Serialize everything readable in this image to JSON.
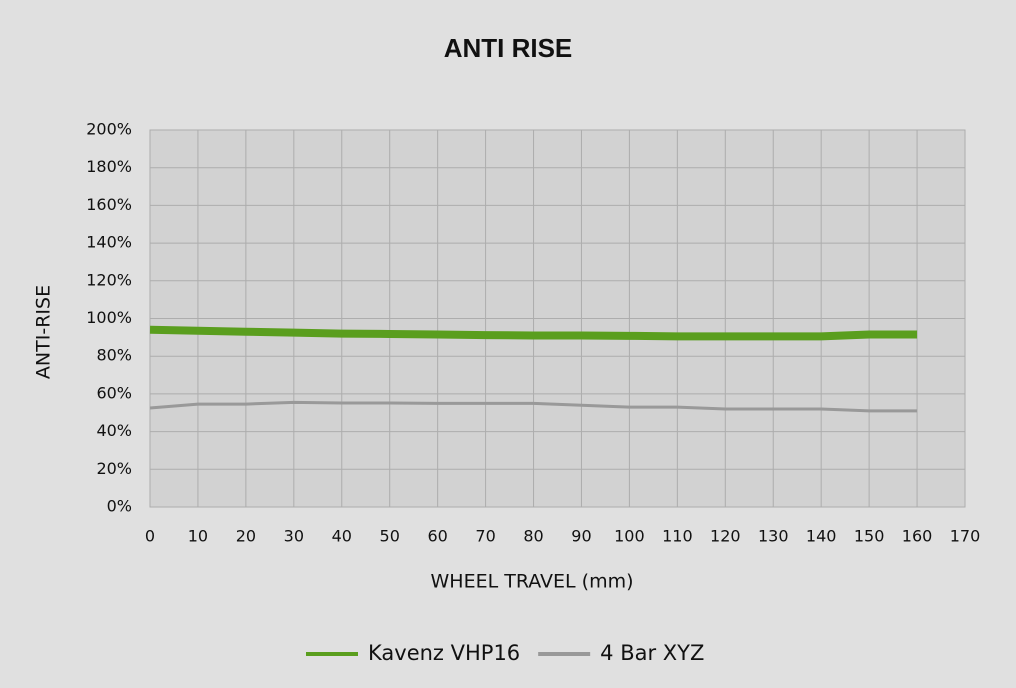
{
  "chart_data": {
    "type": "line",
    "title": "ANTI RISE",
    "x_label": "WHEEL TRAVEL (mm)",
    "y_label": "ANTI-RISE",
    "x": [
      0,
      10,
      20,
      30,
      40,
      50,
      60,
      70,
      80,
      90,
      100,
      110,
      120,
      130,
      140,
      150,
      160
    ],
    "series": [
      {
        "name": "Kavenz VHP16",
        "color": "#5a9e1e",
        "width": 8,
        "values": [
          94,
          93.5,
          93,
          92.5,
          92,
          91.8,
          91.5,
          91.2,
          91,
          91,
          90.8,
          90.5,
          90.5,
          90.5,
          90.5,
          91.5,
          91.5
        ]
      },
      {
        "name": "4 Bar XYZ",
        "color": "#999999",
        "width": 3,
        "values": [
          52.5,
          54.6,
          54.6,
          55.5,
          55.2,
          55.2,
          55,
          55,
          55,
          54,
          53,
          53,
          52,
          52,
          52,
          51,
          51
        ]
      }
    ],
    "xlim": [
      0,
      170
    ],
    "xticks": [
      0,
      10,
      20,
      30,
      40,
      50,
      60,
      70,
      80,
      90,
      100,
      110,
      120,
      130,
      140,
      150,
      160,
      170
    ],
    "ylim": [
      0,
      200
    ],
    "yticks": [
      {
        "value": 0,
        "label": "0%"
      },
      {
        "value": 20,
        "label": "20%"
      },
      {
        "value": 40,
        "label": "40%"
      },
      {
        "value": 60,
        "label": "60%"
      },
      {
        "value": 80,
        "label": "80%"
      },
      {
        "value": 100,
        "label": "100%"
      },
      {
        "value": 120,
        "label": "120%"
      },
      {
        "value": 140,
        "label": "140%"
      },
      {
        "value": 160,
        "label": "160%"
      },
      {
        "value": 180,
        "label": "180%"
      },
      {
        "value": 200,
        "label": "200%"
      }
    ],
    "grid": true,
    "legend": "bottom"
  }
}
